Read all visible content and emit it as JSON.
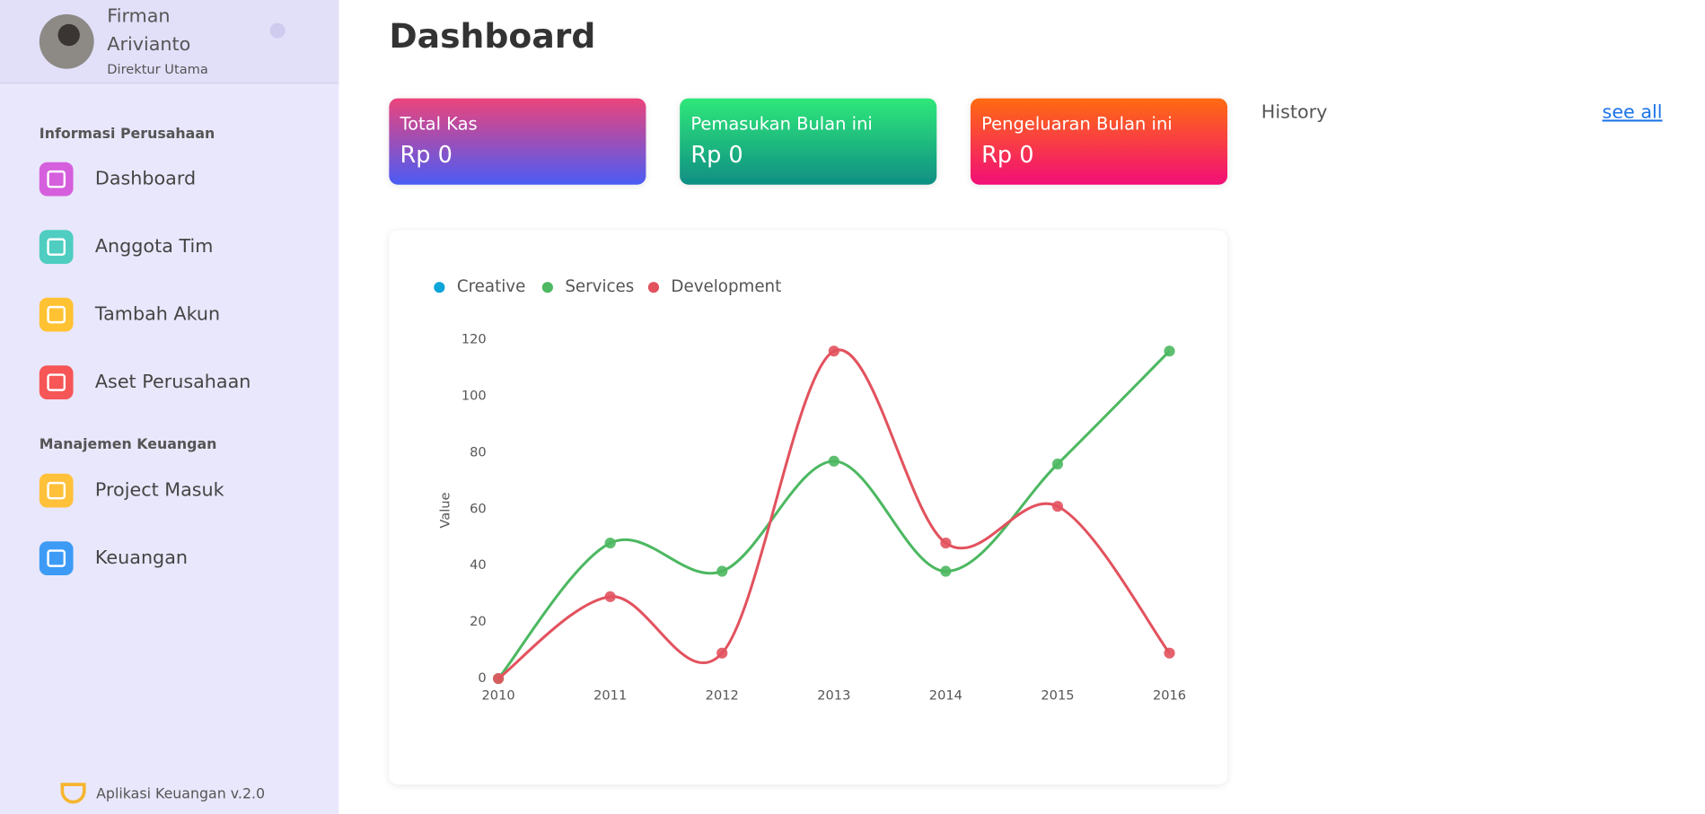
{
  "sidebar": {
    "user": {
      "name": "Firman Arivianto",
      "role": "Direktur Utama"
    },
    "sections": [
      {
        "title": "Informasi Perusahaan",
        "items": [
          "Dashboard",
          "Anggota Tim",
          "Tambah Akun",
          "Aset Perusahaan"
        ]
      },
      {
        "title": "Manajemen Keuangan",
        "items": [
          "Project Masuk",
          "Keuangan"
        ]
      }
    ],
    "footer": "Aplikasi Keuangan v.2.0"
  },
  "header": {
    "title": "Dashboard"
  },
  "cards": [
    {
      "label": "Total Kas",
      "value": "Rp 0"
    },
    {
      "label": "Pemasukan Bulan ini",
      "value": "Rp 0"
    },
    {
      "label": "Pengeluaran Bulan ini",
      "value": "Rp 0"
    }
  ],
  "history": {
    "title": "History",
    "link": "see all"
  },
  "chart_data": {
    "type": "line",
    "y_label": "Value",
    "categories": [
      "2010",
      "2011",
      "2012",
      "2013",
      "2014",
      "2015",
      "2016"
    ],
    "series": [
      {
        "name": "Creative",
        "color": "#0ea5d9",
        "values": [
          null,
          null,
          null,
          null,
          null,
          null,
          null
        ]
      },
      {
        "name": "Services",
        "color": "#4cb861",
        "values": [
          0,
          48,
          38,
          77,
          38,
          76,
          116
        ]
      },
      {
        "name": "Development",
        "color": "#e2525e",
        "values": [
          0,
          29,
          9,
          116,
          48,
          61,
          9
        ]
      }
    ],
    "ylim": [
      0,
      120
    ],
    "yticks": [
      0,
      20,
      40,
      60,
      80,
      100,
      120
    ],
    "smooth": true,
    "markers": true,
    "legend": "top-left"
  }
}
